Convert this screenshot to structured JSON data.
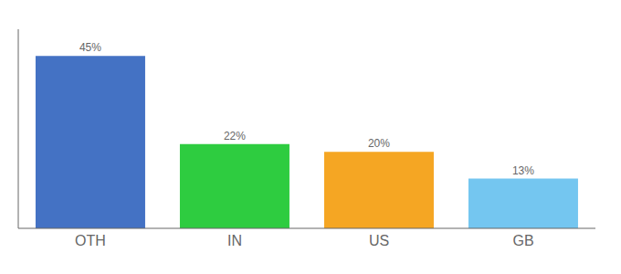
{
  "chart_data": {
    "type": "bar",
    "categories": [
      "OTH",
      "IN",
      "US",
      "GB"
    ],
    "values": [
      45,
      22,
      20,
      13
    ],
    "value_labels": [
      "45%",
      "22%",
      "20%",
      "13%"
    ],
    "data_labels": true,
    "colors": [
      "#4472c4",
      "#2ecc40",
      "#f5a623",
      "#74c6f0"
    ],
    "ylim": [
      0,
      52
    ],
    "tick_labels": "x"
  }
}
